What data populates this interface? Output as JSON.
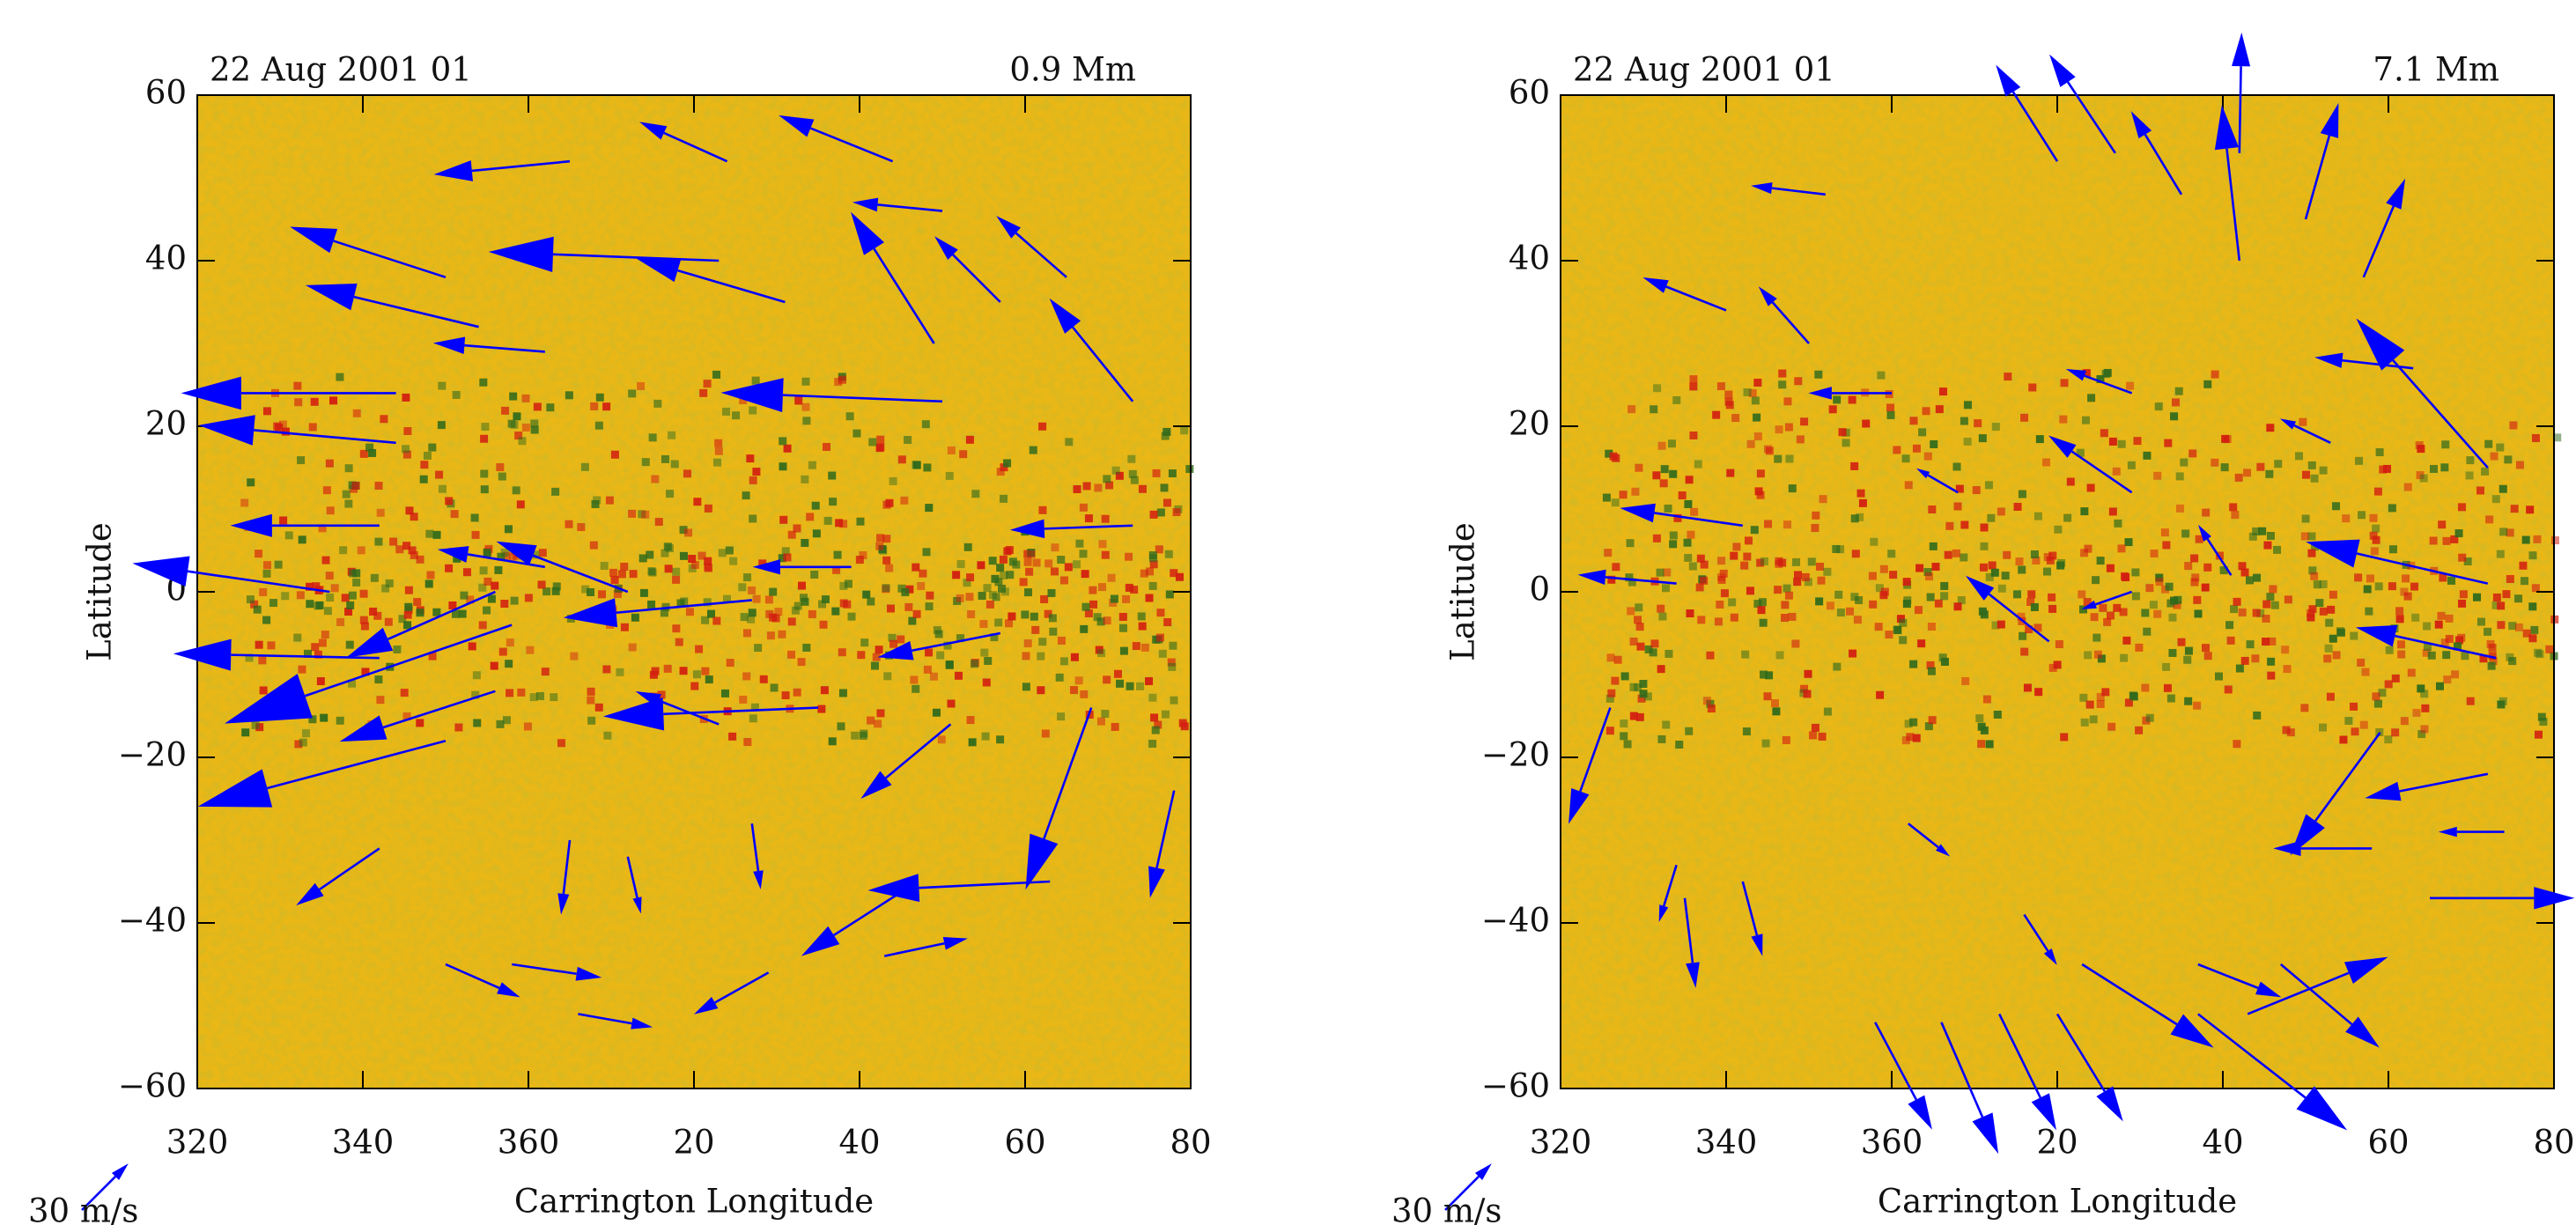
{
  "chart_data": [
    {
      "type": "vector",
      "title_left": "22 Aug 2001 01",
      "title_right": "0.9 Mm",
      "xlabel": "Carrington Longitude",
      "ylabel": "Latitude",
      "xlim": [
        320,
        440
      ],
      "ylim": [
        -60,
        60
      ],
      "xticks": [
        320,
        340,
        360,
        {
          "value": 380,
          "label": "20"
        },
        {
          "value": 400,
          "label": "40"
        },
        {
          "value": 420,
          "label": "60"
        },
        {
          "value": 440,
          "label": "80"
        }
      ],
      "yticks": [
        {
          "value": -60,
          "label": "−60"
        },
        {
          "value": -40,
          "label": "−40"
        },
        {
          "value": -20,
          "label": "−20"
        },
        0,
        20,
        40,
        60
      ],
      "color": "#0000ff",
      "reference": {
        "value": 30,
        "label": "30 m/s"
      },
      "vectors": {
        "x": [
          365,
          384,
          404,
          410,
          417,
          425,
          433,
          409,
          391,
          383,
          350,
          354,
          362,
          344,
          344,
          342,
          336,
          342,
          356,
          358,
          356,
          350,
          342,
          362,
          372,
          387,
          395,
          399,
          410,
          433,
          411,
          417,
          428,
          438,
          423,
          407,
          389,
          350,
          358,
          366,
          372,
          387,
          365,
          403,
          383
        ],
        "y": [
          52,
          52,
          52,
          46,
          35,
          38,
          23,
          30,
          35,
          40,
          38,
          32,
          29,
          24,
          18,
          8,
          0,
          -8,
          0,
          -4,
          -12,
          -18,
          -31,
          3,
          0,
          -1,
          -14,
          3,
          23,
          8,
          -16,
          -5,
          -14,
          -24,
          -35,
          -35,
          -46,
          -45,
          -45,
          -51,
          -32,
          -28,
          -30,
          -44,
          -16
        ],
        "u": [
          -62,
          -40,
          -52,
          -41,
          -30,
          -32,
          -38,
          -38,
          -68,
          -105,
          -71,
          -79,
          -51,
          -98,
          -90,
          -68,
          -90,
          -94,
          -68,
          -131,
          -71,
          -113,
          -38,
          -49,
          -60,
          -86,
          -98,
          -45,
          -101,
          -56,
          -41,
          -56,
          -30,
          -11,
          -83,
          -53,
          -34,
          34,
          41,
          34,
          6,
          4,
          -4,
          38,
          -38
        ],
        "v": [
          -6,
          18,
          21,
          4,
          30,
          28,
          47,
          60,
          20,
          4,
          23,
          19,
          4,
          0,
          8,
          0,
          13,
          2,
          -30,
          -45,
          -23,
          -30,
          -26,
          8,
          23,
          -8,
          -4,
          0,
          4,
          -2,
          -34,
          -11,
          -83,
          -49,
          -4,
          -34,
          -19,
          -15,
          -6,
          -6,
          -26,
          -30,
          -34,
          8,
          15
        ]
      }
    },
    {
      "type": "vector",
      "title_left": "22 Aug 2001 01",
      "title_right": "7.1 Mm",
      "xlabel": "Carrington Longitude",
      "ylabel": "Latitude",
      "xlim": [
        320,
        440
      ],
      "ylim": [
        -60,
        60
      ],
      "xticks": [
        320,
        340,
        360,
        {
          "value": 380,
          "label": "20"
        },
        {
          "value": 400,
          "label": "40"
        },
        {
          "value": 420,
          "label": "60"
        },
        {
          "value": 440,
          "label": "80"
        }
      ],
      "yticks": [
        {
          "value": -60,
          "label": "−60"
        },
        {
          "value": -40,
          "label": "−40"
        },
        {
          "value": -20,
          "label": "−20"
        },
        0,
        20,
        40,
        60
      ],
      "color": "#0000ff",
      "reference": {
        "value": 30,
        "label": "30 m/s"
      },
      "vectors": {
        "x": [
          380,
          387,
          402,
          410,
          417,
          395,
          402,
          432,
          423,
          432,
          433,
          419,
          432,
          418,
          434,
          425,
          403,
          397,
          407,
          397,
          383,
          373,
          366,
          358,
          380,
          334,
          335,
          342,
          326,
          342,
          334,
          340,
          350,
          352,
          360,
          389,
          389,
          379,
          401,
          389,
          376,
          362,
          368,
          413
        ],
        "y": [
          52,
          53,
          53,
          45,
          38,
          48,
          40,
          15,
          27,
          1,
          -8,
          -17,
          -22,
          -31,
          -29,
          -37,
          -51,
          -45,
          -45,
          -51,
          -45,
          -51,
          -52,
          -52,
          -51,
          -33,
          -37,
          -35,
          -14,
          8,
          1,
          34,
          30,
          48,
          24,
          24,
          12,
          -6,
          2,
          0,
          -39,
          -28,
          12,
          18
        ],
        "u": [
          -28,
          -30,
          1,
          15,
          19,
          -23,
          -8,
          -60,
          -45,
          -83,
          -64,
          -41,
          -56,
          -45,
          -30,
          66,
          64,
          38,
          45,
          68,
          60,
          26,
          26,
          26,
          30,
          -8,
          5,
          9,
          -19,
          -56,
          -45,
          -38,
          -23,
          -34,
          -38,
          -30,
          -38,
          -38,
          -15,
          -23,
          15,
          19,
          -19,
          -23
        ],
        "v": [
          44,
          45,
          55,
          53,
          45,
          38,
          71,
          68,
          5,
          19,
          14,
          -56,
          -11,
          0,
          0,
          0,
          26,
          -15,
          -38,
          -53,
          -38,
          -53,
          -60,
          -49,
          -49,
          -26,
          -41,
          -34,
          -53,
          8,
          4,
          15,
          26,
          4,
          0,
          11,
          26,
          30,
          23,
          -8,
          -23,
          -15,
          11,
          11
        ]
      }
    }
  ]
}
